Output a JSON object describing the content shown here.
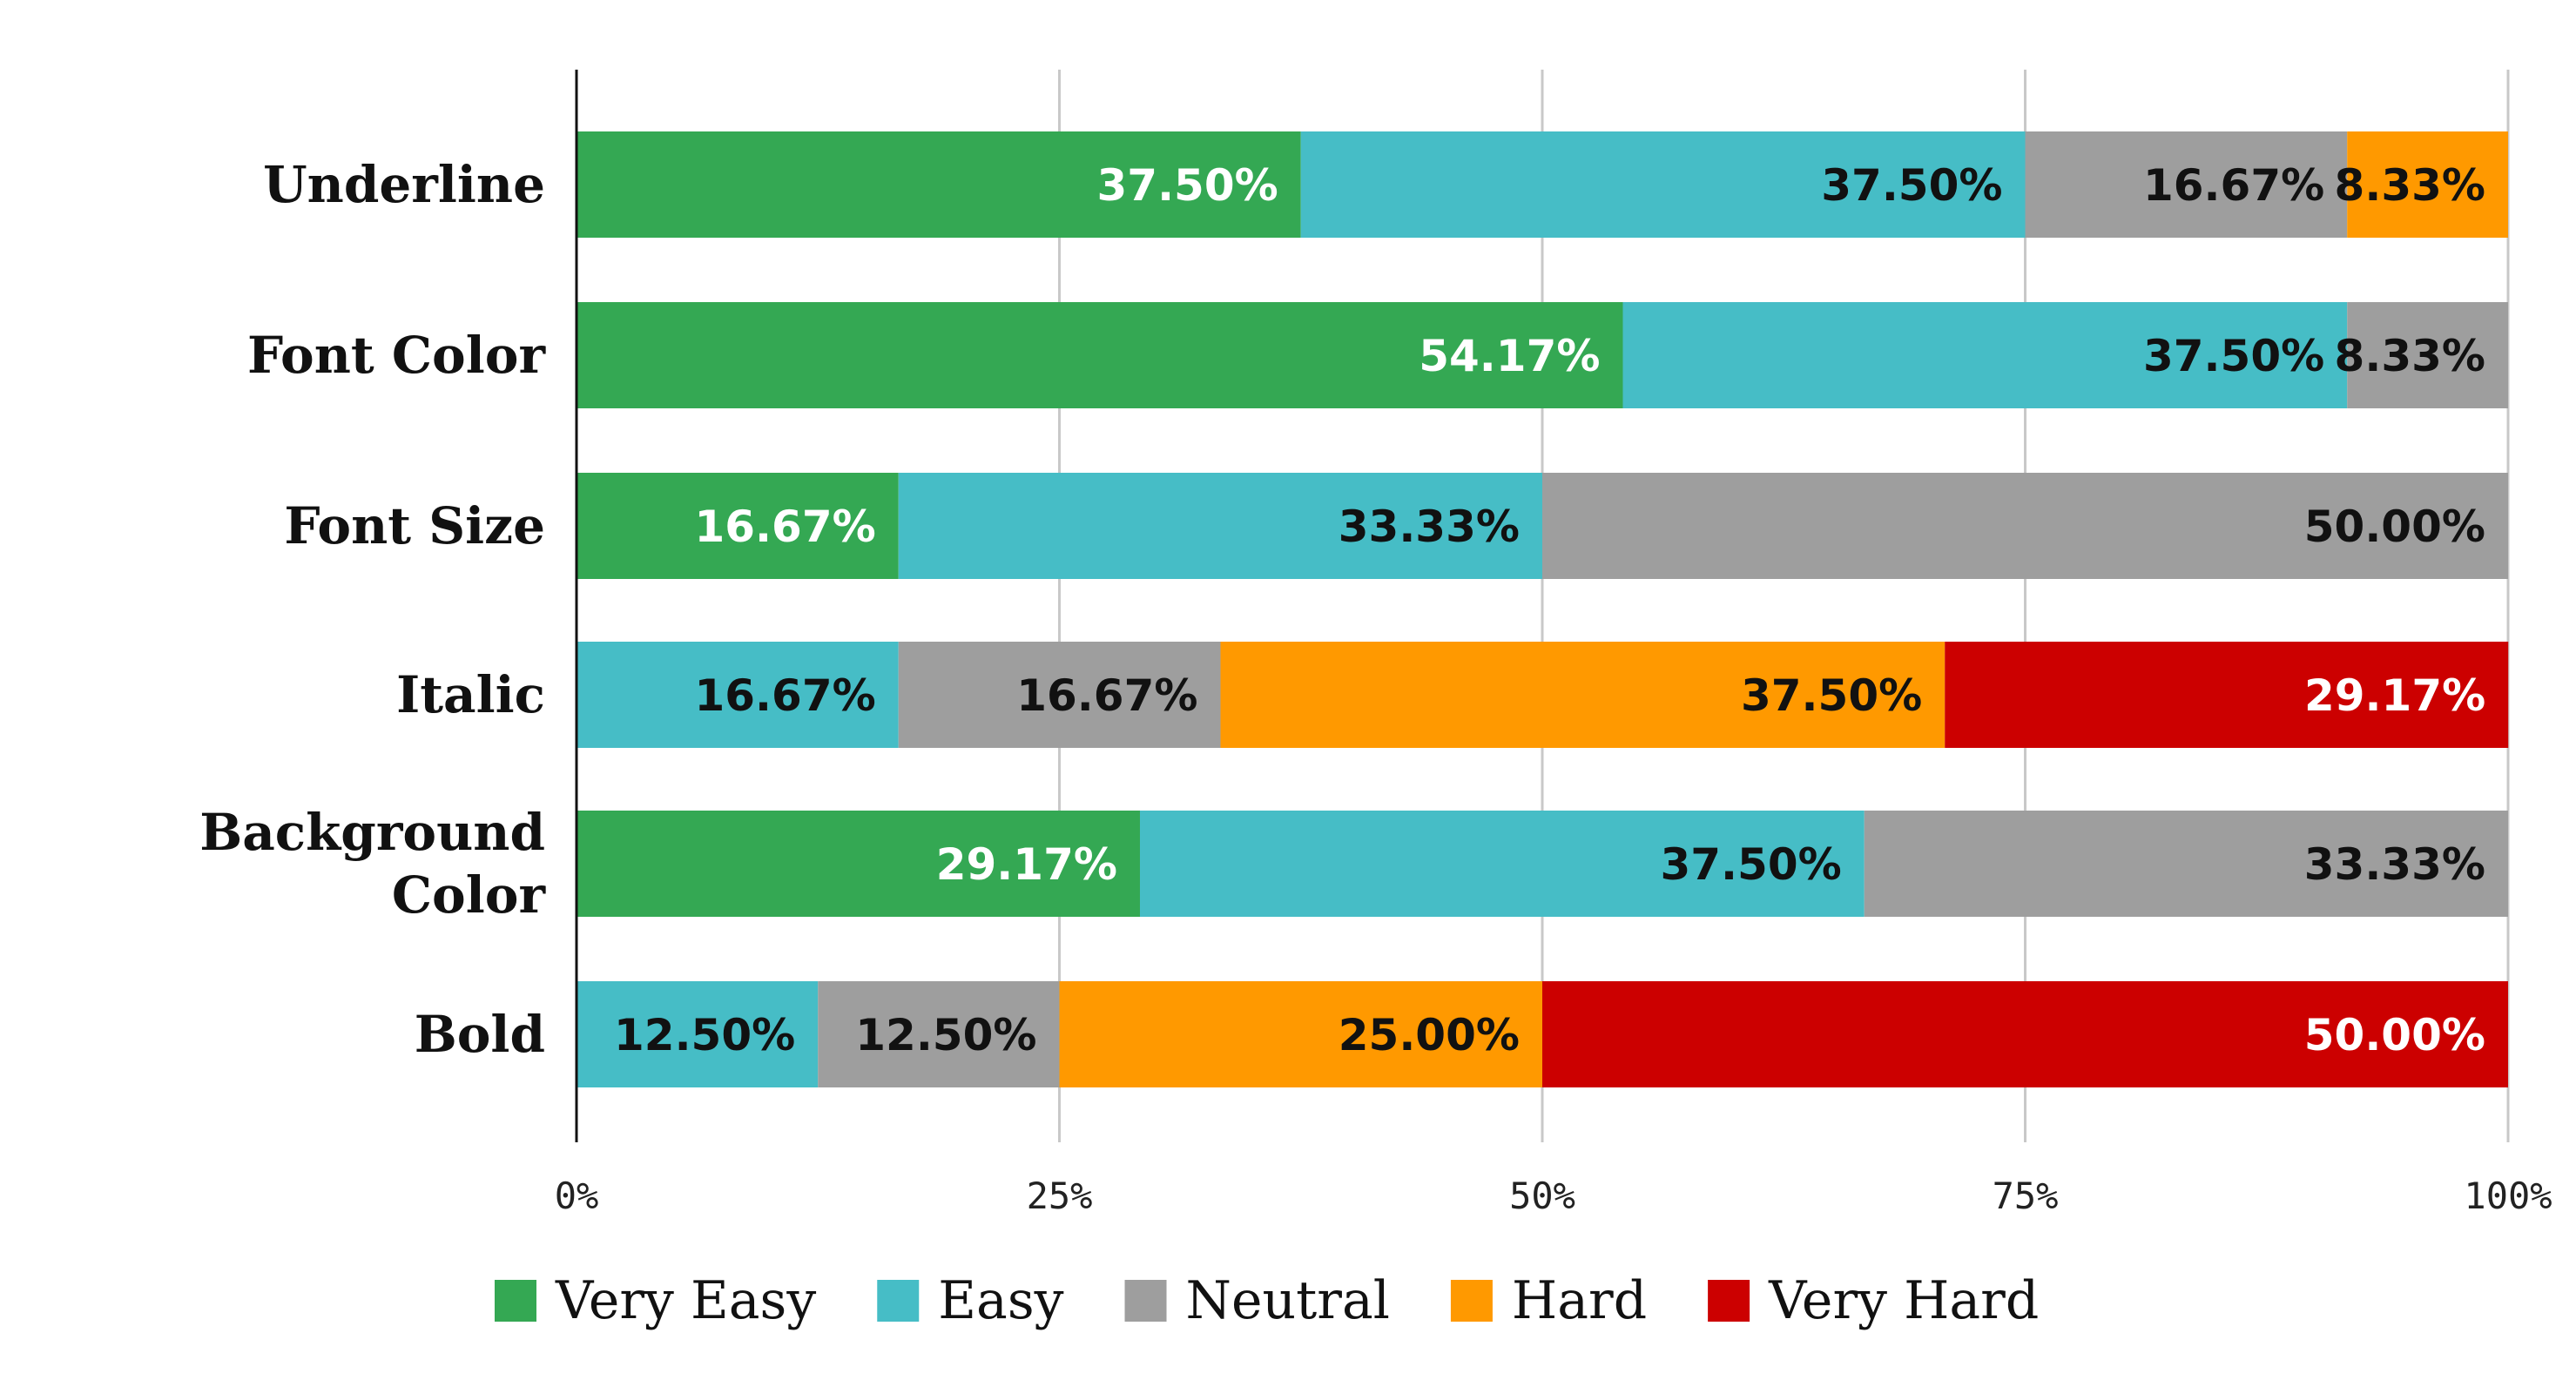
{
  "chart_data": {
    "type": "bar",
    "orientation": "horizontal",
    "stacked": true,
    "categories": [
      "Underline",
      "Font Color",
      "Font Size",
      "Italic",
      "Background Color",
      "Bold"
    ],
    "series": [
      {
        "name": "Very Easy",
        "color": "#34a853",
        "label_color": "#ffffff",
        "values": [
          37.5,
          54.17,
          16.67,
          0,
          29.17,
          0
        ]
      },
      {
        "name": "Easy",
        "color": "#46bdc6",
        "label_color": "#111111",
        "values": [
          37.5,
          37.5,
          33.33,
          16.67,
          37.5,
          12.5
        ]
      },
      {
        "name": "Neutral",
        "color": "#9e9e9e",
        "label_color": "#111111",
        "values": [
          16.67,
          8.33,
          50.0,
          16.67,
          33.33,
          12.5
        ]
      },
      {
        "name": "Hard",
        "color": "#ff9900",
        "label_color": "#111111",
        "values": [
          8.33,
          0,
          0,
          37.5,
          0,
          25.0
        ]
      },
      {
        "name": "Very Hard",
        "color": "#cc0000",
        "label_color": "#ffffff",
        "values": [
          0,
          0,
          0,
          29.17,
          0,
          50.0
        ]
      }
    ],
    "data_labels": [
      [
        "37.50%",
        "54.17%",
        "16.67%",
        "",
        "29.17%",
        ""
      ],
      [
        "37.50%",
        "37.50%",
        "33.33%",
        "16.67%",
        "37.50%",
        "12.50%"
      ],
      [
        "16.67%",
        "8.33%",
        "50.00%",
        "16.67%",
        "33.33%",
        "12.50%"
      ],
      [
        "8.33%",
        "",
        "",
        "37.50%",
        "",
        "25.00%"
      ],
      [
        "",
        "",
        "",
        "29.17%",
        "",
        "50.00%"
      ]
    ],
    "x_ticks": [
      0,
      25,
      50,
      75,
      100
    ],
    "x_tick_labels": [
      "0%",
      "25%",
      "50%",
      "75%",
      "100%"
    ],
    "xlim": [
      0,
      100
    ],
    "grid": true,
    "legend_position": "bottom",
    "title": "",
    "xlabel": "",
    "ylabel": ""
  }
}
